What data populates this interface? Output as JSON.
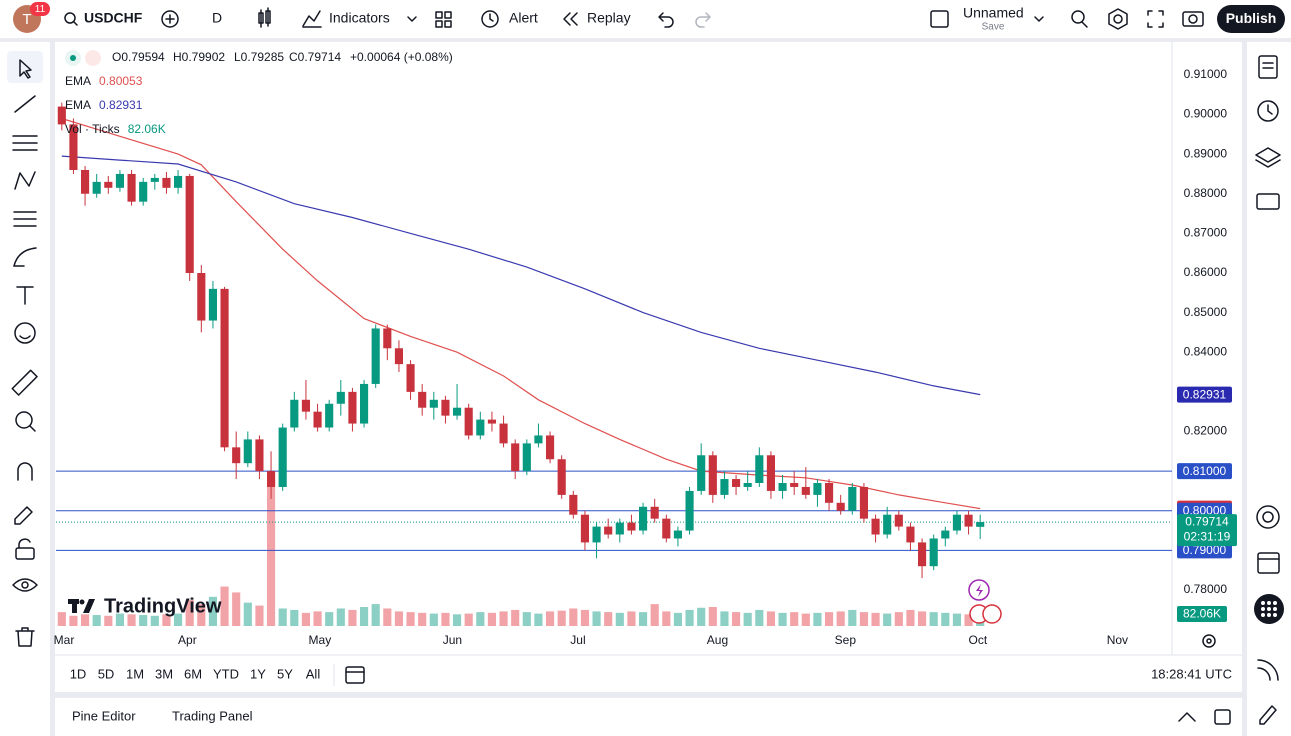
{
  "toolbar": {
    "avatar": "T",
    "badge": "11",
    "symbol": "USDCHF",
    "interval": "D",
    "indicators": "Indicators",
    "alert": "Alert",
    "replay": "Replay",
    "layout_name": "Unnamed",
    "layout_status": "Save",
    "publish": "Publish"
  },
  "legend": {
    "ohlc": [
      "O0.79594",
      "H0.79902",
      "L0.79285",
      "C0.79714",
      "+0.00064 (+0.08%)"
    ],
    "indicators": [
      {
        "name": "EMA",
        "value": "0.80053",
        "color": "#e0504f"
      },
      {
        "name": "EMA",
        "value": "0.82931",
        "color": "#3a3ab0"
      },
      {
        "name": "Vol · Ticks",
        "value": "82.06K",
        "color": "#089981"
      }
    ]
  },
  "watermark": "TradingView",
  "chart_data": {
    "type": "candlestick",
    "xlim": [
      -0.5,
      95.5
    ],
    "xticks": [
      {
        "value": 0,
        "label": "Mar"
      },
      {
        "value": 10.8,
        "label": "Apr"
      },
      {
        "value": 22.2,
        "label": "May"
      },
      {
        "value": 33.6,
        "label": "Jun"
      },
      {
        "value": 44.4,
        "label": "Jul"
      },
      {
        "value": 56.4,
        "label": "Aug"
      },
      {
        "value": 67.4,
        "label": "Sep"
      },
      {
        "value": 78.8,
        "label": "Oct"
      },
      {
        "value": 90.8,
        "label": "Nov"
      }
    ],
    "ylim": [
      0.7699,
      0.9183
    ],
    "yticks": [
      {
        "value": 0.91,
        "label": "0.91000"
      },
      {
        "value": 0.9,
        "label": "0.90000"
      },
      {
        "value": 0.89,
        "label": "0.89000"
      },
      {
        "value": 0.88,
        "label": "0.88000"
      },
      {
        "value": 0.87,
        "label": "0.87000"
      },
      {
        "value": 0.86,
        "label": "0.86000"
      },
      {
        "value": 0.85,
        "label": "0.85000"
      },
      {
        "value": 0.84,
        "label": "0.84000"
      },
      {
        "value": 0.82,
        "label": "0.82000"
      },
      {
        "value": 0.78,
        "label": "0.78000"
      }
    ],
    "grid": false,
    "up_color": "#089981",
    "down_color": "#c8323c",
    "candles": [
      [
        0.902,
        0.903,
        0.896,
        0.8975
      ],
      [
        0.8975,
        0.899,
        0.885,
        0.886
      ],
      [
        0.886,
        0.887,
        0.877,
        0.88
      ],
      [
        0.88,
        0.885,
        0.879,
        0.883
      ],
      [
        0.883,
        0.8845,
        0.88,
        0.8815
      ],
      [
        0.8815,
        0.886,
        0.8805,
        0.885
      ],
      [
        0.885,
        0.886,
        0.877,
        0.878
      ],
      [
        0.878,
        0.884,
        0.877,
        0.883
      ],
      [
        0.883,
        0.885,
        0.881,
        0.884
      ],
      [
        0.884,
        0.8855,
        0.88,
        0.8815
      ],
      [
        0.8815,
        0.886,
        0.88,
        0.8845
      ],
      [
        0.8845,
        0.885,
        0.858,
        0.86
      ],
      [
        0.86,
        0.862,
        0.845,
        0.848
      ],
      [
        0.848,
        0.858,
        0.846,
        0.856
      ],
      [
        0.856,
        0.8565,
        0.815,
        0.816
      ],
      [
        0.816,
        0.82,
        0.808,
        0.812
      ],
      [
        0.812,
        0.82,
        0.811,
        0.818
      ],
      [
        0.818,
        0.819,
        0.808,
        0.81
      ],
      [
        0.81,
        0.815,
        0.803,
        0.806
      ],
      [
        0.806,
        0.822,
        0.805,
        0.821
      ],
      [
        0.821,
        0.83,
        0.82,
        0.828
      ],
      [
        0.828,
        0.833,
        0.823,
        0.825
      ],
      [
        0.825,
        0.827,
        0.82,
        0.821
      ],
      [
        0.821,
        0.828,
        0.82,
        0.827
      ],
      [
        0.827,
        0.833,
        0.824,
        0.83
      ],
      [
        0.83,
        0.831,
        0.82,
        0.822
      ],
      [
        0.822,
        0.833,
        0.821,
        0.832
      ],
      [
        0.832,
        0.847,
        0.831,
        0.846
      ],
      [
        0.846,
        0.847,
        0.838,
        0.841
      ],
      [
        0.841,
        0.843,
        0.835,
        0.837
      ],
      [
        0.837,
        0.838,
        0.828,
        0.83
      ],
      [
        0.83,
        0.832,
        0.824,
        0.826
      ],
      [
        0.826,
        0.83,
        0.823,
        0.828
      ],
      [
        0.828,
        0.829,
        0.822,
        0.824
      ],
      [
        0.824,
        0.832,
        0.823,
        0.826
      ],
      [
        0.826,
        0.827,
        0.818,
        0.819
      ],
      [
        0.819,
        0.825,
        0.818,
        0.823
      ],
      [
        0.823,
        0.825,
        0.82,
        0.822
      ],
      [
        0.822,
        0.824,
        0.816,
        0.817
      ],
      [
        0.817,
        0.818,
        0.808,
        0.81
      ],
      [
        0.81,
        0.818,
        0.809,
        0.817
      ],
      [
        0.817,
        0.822,
        0.816,
        0.819
      ],
      [
        0.819,
        0.82,
        0.812,
        0.813
      ],
      [
        0.813,
        0.814,
        0.803,
        0.804
      ],
      [
        0.804,
        0.805,
        0.798,
        0.799
      ],
      [
        0.799,
        0.8,
        0.79,
        0.792
      ],
      [
        0.792,
        0.797,
        0.788,
        0.796
      ],
      [
        0.796,
        0.798,
        0.793,
        0.794
      ],
      [
        0.794,
        0.798,
        0.792,
        0.797
      ],
      [
        0.797,
        0.799,
        0.794,
        0.795
      ],
      [
        0.795,
        0.802,
        0.794,
        0.801
      ],
      [
        0.801,
        0.803,
        0.797,
        0.798
      ],
      [
        0.798,
        0.799,
        0.792,
        0.793
      ],
      [
        0.793,
        0.796,
        0.791,
        0.795
      ],
      [
        0.795,
        0.806,
        0.794,
        0.805
      ],
      [
        0.805,
        0.817,
        0.804,
        0.814
      ],
      [
        0.814,
        0.815,
        0.802,
        0.804
      ],
      [
        0.804,
        0.81,
        0.803,
        0.808
      ],
      [
        0.808,
        0.809,
        0.804,
        0.806
      ],
      [
        0.806,
        0.81,
        0.805,
        0.807
      ],
      [
        0.807,
        0.816,
        0.806,
        0.814
      ],
      [
        0.814,
        0.815,
        0.803,
        0.805
      ],
      [
        0.805,
        0.809,
        0.803,
        0.807
      ],
      [
        0.807,
        0.81,
        0.804,
        0.806
      ],
      [
        0.806,
        0.811,
        0.803,
        0.804
      ],
      [
        0.804,
        0.808,
        0.801,
        0.807
      ],
      [
        0.807,
        0.808,
        0.8,
        0.802
      ],
      [
        0.802,
        0.804,
        0.799,
        0.8
      ],
      [
        0.8,
        0.807,
        0.799,
        0.806
      ],
      [
        0.806,
        0.807,
        0.797,
        0.798
      ],
      [
        0.798,
        0.799,
        0.792,
        0.794
      ],
      [
        0.794,
        0.801,
        0.793,
        0.799
      ],
      [
        0.799,
        0.8,
        0.795,
        0.796
      ],
      [
        0.796,
        0.797,
        0.79,
        0.792
      ],
      [
        0.792,
        0.793,
        0.783,
        0.786
      ],
      [
        0.786,
        0.794,
        0.785,
        0.793
      ],
      [
        0.793,
        0.796,
        0.791,
        0.795
      ],
      [
        0.795,
        0.8,
        0.794,
        0.799
      ],
      [
        0.799,
        0.8,
        0.794,
        0.796
      ],
      [
        0.79594,
        0.79902,
        0.79285,
        0.79714
      ]
    ],
    "series": [
      {
        "name": "EMA",
        "color": "#e0504f",
        "x": [
          0,
          5,
          10,
          12,
          15,
          19,
          22,
          26,
          30,
          34,
          38,
          41,
          45,
          48,
          52,
          55,
          60,
          64,
          68,
          72,
          76,
          79
        ],
        "values": [
          0.899,
          0.8945,
          0.89,
          0.8873,
          0.878,
          0.866,
          0.858,
          0.8485,
          0.844,
          0.84,
          0.834,
          0.828,
          0.822,
          0.818,
          0.813,
          0.81,
          0.809,
          0.8083,
          0.8065,
          0.804,
          0.802,
          0.80053
        ]
      },
      {
        "name": "EMA",
        "color": "#3a3ab0",
        "x": [
          0,
          5,
          10,
          15,
          20,
          25,
          30,
          35,
          40,
          45,
          50,
          55,
          60,
          65,
          70,
          75,
          79
        ],
        "values": [
          0.8895,
          0.8885,
          0.8875,
          0.883,
          0.8775,
          0.874,
          0.87,
          0.866,
          0.8615,
          0.856,
          0.85,
          0.845,
          0.841,
          0.838,
          0.835,
          0.8315,
          0.8293
        ]
      }
    ],
    "volume": {
      "up_color": "#8ccfc4",
      "down_color": "#f2a3a7",
      "values": [
        95,
        70,
        80,
        75,
        70,
        85,
        80,
        75,
        70,
        80,
        85,
        180,
        150,
        200,
        270,
        230,
        160,
        140,
        1000,
        120,
        110,
        90,
        100,
        95,
        120,
        110,
        130,
        150,
        120,
        100,
        95,
        90,
        85,
        90,
        80,
        85,
        95,
        90,
        100,
        110,
        95,
        85,
        100,
        105,
        120,
        110,
        100,
        95,
        90,
        100,
        95,
        150,
        100,
        90,
        110,
        125,
        130,
        100,
        95,
        90,
        110,
        100,
        90,
        95,
        85,
        90,
        95,
        100,
        110,
        95,
        90,
        85,
        95,
        110,
        100,
        95,
        90,
        85,
        80,
        82.06
      ]
    },
    "levels": {
      "color": "#2a50c8",
      "values": [
        0.81,
        0.8,
        0.79
      ]
    },
    "price_labels": [
      {
        "value": 0.82931,
        "label": "0.82931",
        "color": "#2a2ab0"
      },
      {
        "value": 0.81,
        "label": "0.81000",
        "color": "#2a50c8"
      },
      {
        "value": 0.80053,
        "label": "0.80053",
        "color": "#d7313c"
      },
      {
        "value": 0.8,
        "label": "0.80000",
        "color": "#2a50c8"
      },
      {
        "value": 0.79,
        "label": "0.79000",
        "color": "#2a50c8"
      }
    ],
    "last_price": {
      "value": 0.79714,
      "label": "0.79714",
      "countdown": "02:31:19",
      "color": "#089981"
    },
    "volume_label": {
      "label": "82.06K",
      "color": "#089981"
    }
  },
  "range_buttons": [
    "1D",
    "5D",
    "1M",
    "3M",
    "6M",
    "YTD",
    "1Y",
    "5Y",
    "All"
  ],
  "clock": "18:28:41 UTC",
  "bottom_panel": [
    "Pine Editor",
    "Trading Panel"
  ]
}
